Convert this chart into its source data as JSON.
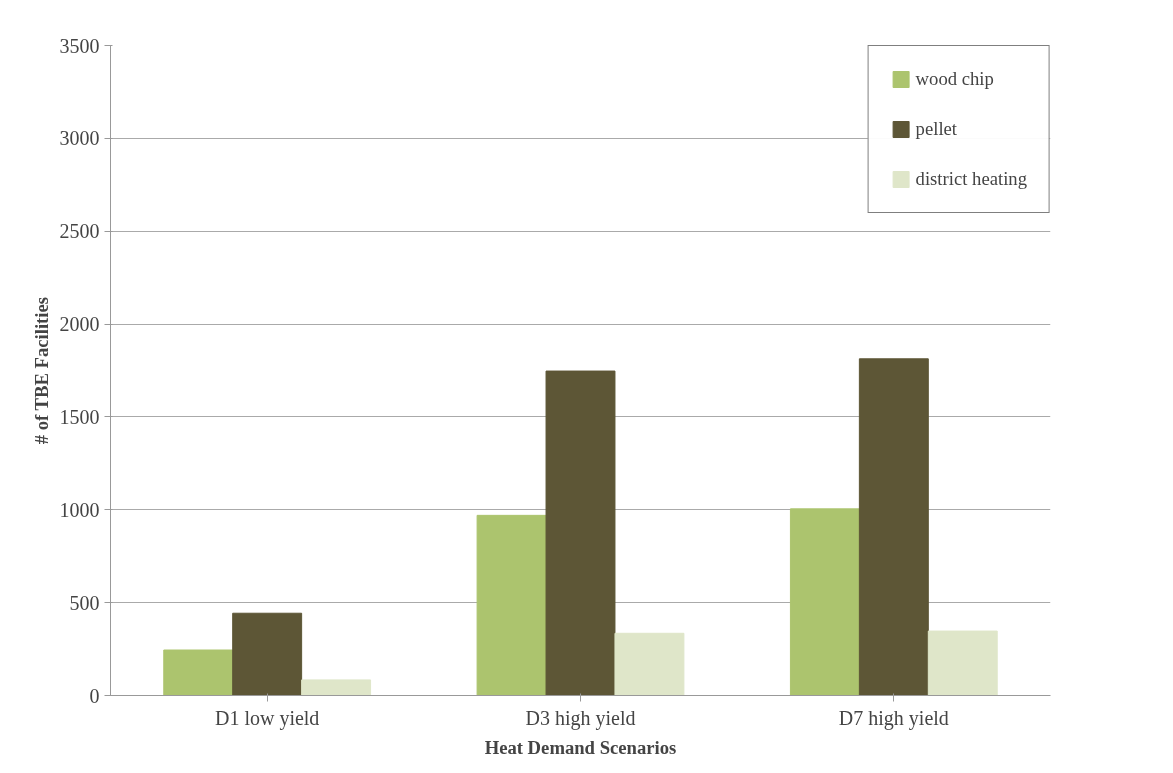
{
  "chart_data": {
    "type": "bar",
    "xlabel": "Heat Demand Scenarios",
    "ylabel": "# of TBE Facilities",
    "categories": [
      "D1 low yield",
      "D3 high yield",
      "D7 high yield"
    ],
    "series": [
      {
        "name": "wood chip",
        "color": "#acc46e",
        "values": [
          245,
          970,
          1005
        ]
      },
      {
        "name": "pellet",
        "color": "#5d5636",
        "values": [
          443,
          1747,
          1813
        ]
      },
      {
        "name": "district heating",
        "color": "#dfe6c9",
        "values": [
          84,
          335,
          347
        ]
      }
    ],
    "ylim": [
      0,
      3500
    ],
    "yticks": [
      0,
      500,
      1000,
      1500,
      2000,
      2500,
      3000,
      3500
    ],
    "grid": "y",
    "legend": "top right"
  }
}
